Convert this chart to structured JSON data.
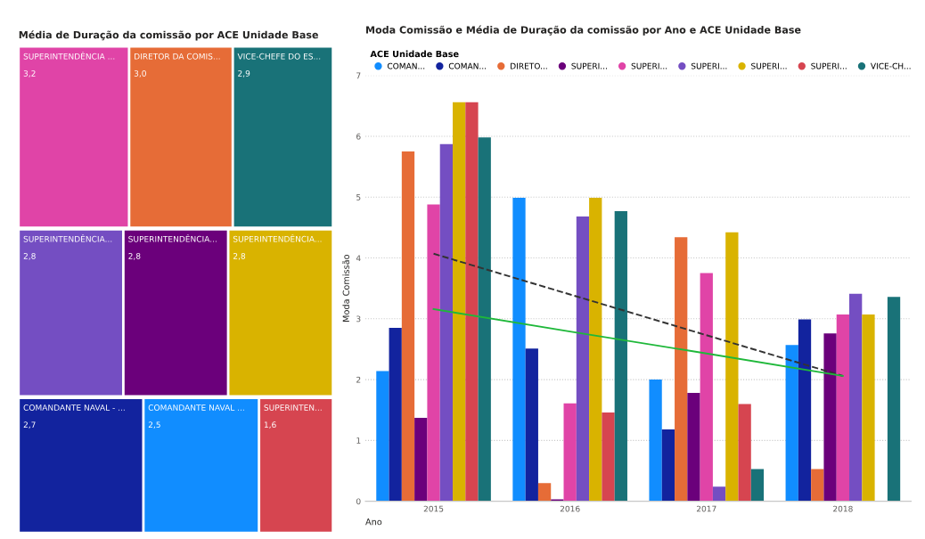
{
  "chart_data": [
    {
      "type": "other",
      "title": "Média de Duração da comissão por ACE Unidade Base",
      "categories": [
        "SUPERINTENDÊNCIA ...",
        "DIRETOR DA COMIS...",
        "VICE-CHEFE DO ES...",
        "SUPERINTENDÊNCIA...",
        "SUPERINTENDÊNCIA...",
        "SUPERINTENDÊNCIA...",
        "COMANDANTE NAVAL - ...",
        "COMANDANTE NAVAL ...",
        "SUPERINTEN..."
      ],
      "values": [
        3.2,
        3.0,
        2.9,
        2.8,
        2.8,
        2.8,
        2.7,
        2.5,
        1.6
      ],
      "value_labels": [
        "3,2",
        "3,0",
        "2,9",
        "2,8",
        "2,8",
        "2,8",
        "2,7",
        "2,5",
        "1,6"
      ],
      "colors": [
        "#e044a7",
        "#e66c37",
        "#197278",
        "#744ec2",
        "#6b007b",
        "#d9b300",
        "#12239e",
        "#118dff",
        "#d64550"
      ]
    },
    {
      "type": "bar",
      "title": "Moda Comissão e Média de Duração da comissão por Ano e ACE Unidade Base",
      "xlabel": "Ano",
      "ylabel": "Moda Comissão",
      "legend_title": "ACE Unidade Base",
      "legend": "top",
      "grid": "y",
      "categories": [
        "2015",
        "2016",
        "2017",
        "2018"
      ],
      "ylim": [
        0,
        7
      ],
      "yticks": [
        0,
        1,
        2,
        3,
        4,
        5,
        6,
        7
      ],
      "series": [
        {
          "name": "COMAN...",
          "color": "#118dff",
          "values": [
            2.14,
            4.99,
            2.0,
            2.57
          ]
        },
        {
          "name": "COMAN...",
          "color": "#12239e",
          "values": [
            2.85,
            2.51,
            1.18,
            2.99
          ]
        },
        {
          "name": "DIRETO...",
          "color": "#e66c37",
          "values": [
            5.75,
            0.3,
            4.34,
            0.53
          ]
        },
        {
          "name": "SUPERI...",
          "color": "#6b007b",
          "values": [
            1.37,
            0.03,
            1.78,
            2.76
          ]
        },
        {
          "name": "SUPERI...",
          "color": "#e044a7",
          "values": [
            4.88,
            1.61,
            3.75,
            3.07
          ]
        },
        {
          "name": "SUPERI...",
          "color": "#744ec2",
          "values": [
            5.87,
            4.68,
            0.24,
            3.41
          ]
        },
        {
          "name": "SUPERI...",
          "color": "#d9b300",
          "values": [
            6.56,
            4.99,
            4.42,
            3.07
          ]
        },
        {
          "name": "SUPERI...",
          "color": "#d64550",
          "values": [
            6.56,
            1.46,
            1.6,
            null
          ]
        },
        {
          "name": "VICE-CH...",
          "color": "#197278",
          "values": [
            5.98,
            4.77,
            0.53,
            3.36
          ]
        },
        {
          "type": "line",
          "color": "#333333",
          "line_style": "dashed",
          "values": [
            4.07,
            3.4,
            2.73,
            2.06
          ]
        },
        {
          "type": "line",
          "color": "#1fb83a",
          "line_style": "solid",
          "values": [
            3.16,
            2.79,
            2.43,
            2.06
          ]
        }
      ]
    }
  ]
}
